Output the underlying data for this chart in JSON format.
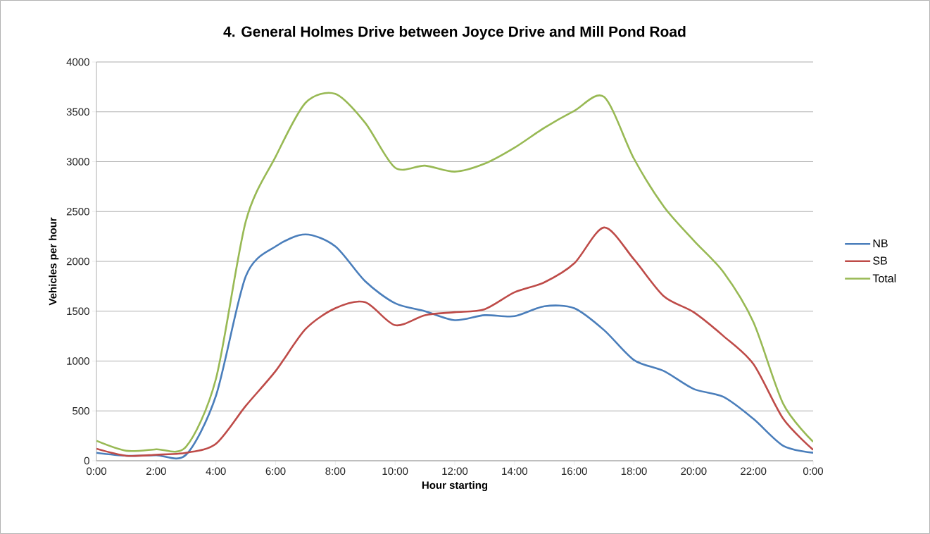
{
  "chart_data": {
    "type": "line",
    "title": "4. General Holmes Drive between Joyce Drive and Mill Pond Road",
    "xlabel": "Hour starting",
    "ylabel": "Vehicles per hour",
    "x": [
      0,
      1,
      2,
      3,
      4,
      5,
      6,
      7,
      8,
      9,
      10,
      11,
      12,
      13,
      14,
      15,
      16,
      17,
      18,
      19,
      20,
      21,
      22,
      23,
      24
    ],
    "series": [
      {
        "name": "NB",
        "color": "#4a7ebb",
        "values": [
          80,
          50,
          55,
          60,
          650,
          1850,
          2150,
          2270,
          2150,
          1800,
          1580,
          1500,
          1410,
          1460,
          1450,
          1550,
          1530,
          1310,
          1010,
          900,
          720,
          640,
          420,
          150,
          80
        ]
      },
      {
        "name": "SB",
        "color": "#be4b48",
        "values": [
          120,
          50,
          60,
          80,
          170,
          550,
          900,
          1320,
          1530,
          1590,
          1360,
          1460,
          1490,
          1520,
          1690,
          1790,
          1980,
          2340,
          2020,
          1650,
          1490,
          1250,
          970,
          420,
          110
        ]
      },
      {
        "name": "Total",
        "color": "#98b954",
        "values": [
          200,
          100,
          115,
          140,
          820,
          2400,
          3050,
          3590,
          3680,
          3390,
          2940,
          2960,
          2900,
          2980,
          3140,
          3340,
          3510,
          3650,
          3030,
          2550,
          2210,
          1890,
          1390,
          570,
          190
        ]
      }
    ],
    "xlim": [
      0,
      24
    ],
    "xticks": [
      {
        "value": 0,
        "label": "0:00"
      },
      {
        "value": 2,
        "label": "2:00"
      },
      {
        "value": 4,
        "label": "4:00"
      },
      {
        "value": 6,
        "label": "6:00"
      },
      {
        "value": 8,
        "label": "8:00"
      },
      {
        "value": 10,
        "label": "10:00"
      },
      {
        "value": 12,
        "label": "12:00"
      },
      {
        "value": 14,
        "label": "14:00"
      },
      {
        "value": 16,
        "label": "16:00"
      },
      {
        "value": 18,
        "label": "18:00"
      },
      {
        "value": 20,
        "label": "20:00"
      },
      {
        "value": 22,
        "label": "22:00"
      },
      {
        "value": 24,
        "label": "0:00"
      }
    ],
    "ylim": [
      0,
      4000
    ],
    "yticks": [
      0,
      500,
      1000,
      1500,
      2000,
      2500,
      3000,
      3500,
      4000
    ],
    "grid": "y",
    "legend": "right",
    "marker": "none",
    "line_style": "solid"
  }
}
